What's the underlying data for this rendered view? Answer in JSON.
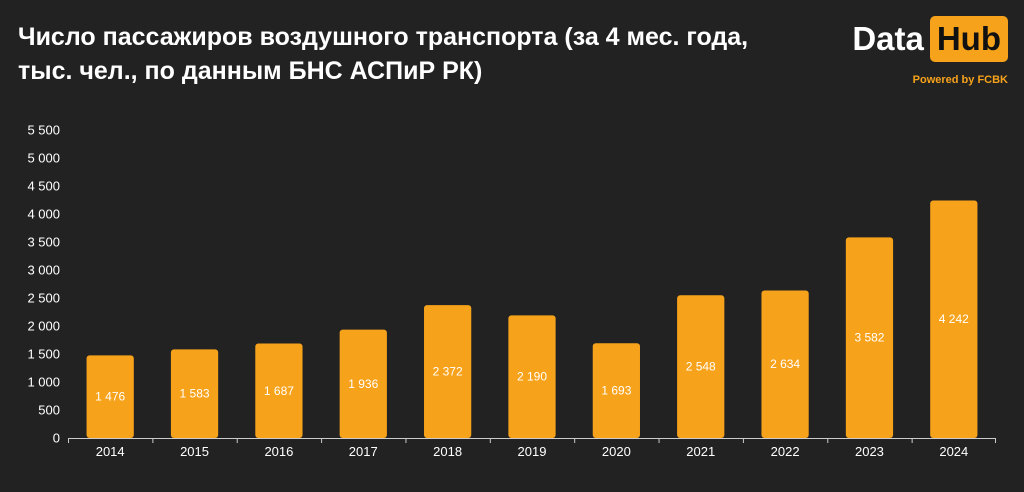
{
  "header": {
    "title_line1": "Число пассажиров воздушного транспорта (за 4 мес. года,",
    "title_line2": "тыс. чел., по данным БНС АСПиР РК)"
  },
  "logo": {
    "word1": "Data",
    "word2": "Hub",
    "powered": "Powered by FCBK"
  },
  "colors": {
    "background": "#222222",
    "bar": "#f7a21b",
    "text": "#ffffff"
  },
  "chart_data": {
    "type": "bar",
    "title": "Число пассажиров воздушного транспорта (за 4 мес. года, тыс. чел., по данным БНС АСПиР РК)",
    "categories": [
      "2014",
      "2015",
      "2016",
      "2017",
      "2018",
      "2019",
      "2020",
      "2021",
      "2022",
      "2023",
      "2024"
    ],
    "values": [
      1476,
      1583,
      1687,
      1936,
      2372,
      2190,
      1693,
      2548,
      2634,
      3582,
      4242
    ],
    "value_labels": [
      "1 476",
      "1 583",
      "1 687",
      "1 936",
      "2 372",
      "2 190",
      "1 693",
      "2 548",
      "2 634",
      "3 582",
      "4 242"
    ],
    "ylim": [
      0,
      5500
    ],
    "y_ticks": [
      0,
      500,
      1000,
      1500,
      2000,
      2500,
      3000,
      3500,
      4000,
      4500,
      5000,
      5500
    ],
    "y_tick_labels": [
      "0",
      "500",
      "1 000",
      "1 500",
      "2 000",
      "2 500",
      "3 000",
      "3 500",
      "4 000",
      "4 500",
      "5 000",
      "5 500"
    ],
    "xlabel": "",
    "ylabel": "",
    "grid": false,
    "legend": "none"
  }
}
